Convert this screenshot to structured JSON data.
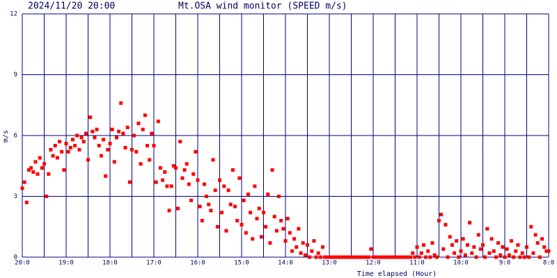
{
  "chart_data": {
    "type": "scatter",
    "title": "Mt.OSA wind monitor (SPEED m/s)",
    "subtitle": "2024/11/20 20:00",
    "ylabel": "m/s",
    "xlabel": "Time elapsed (Hour)",
    "color": "#ff0000",
    "grid_color": "#000080",
    "grid": true,
    "xlim": [
      0,
      12
    ],
    "ylim": [
      0,
      12
    ],
    "yticks": [
      0,
      3,
      6,
      9,
      12
    ],
    "xticks": [
      {
        "value": 0,
        "label": "20:0"
      },
      {
        "value": 1,
        "label": "19:0"
      },
      {
        "value": 2,
        "label": "18:0"
      },
      {
        "value": 3,
        "label": "17:0"
      },
      {
        "value": 4,
        "label": "16:0"
      },
      {
        "value": 5,
        "label": "15:0"
      },
      {
        "value": 6,
        "label": "14:0"
      },
      {
        "value": 7,
        "label": "13:0"
      },
      {
        "value": 8,
        "label": "12:0"
      },
      {
        "value": 9,
        "label": "11:0"
      },
      {
        "value": 10,
        "label": "10:0"
      },
      {
        "value": 11,
        "label": "9:0"
      },
      {
        "value": 12,
        "label": "8:0"
      }
    ],
    "x_grid": [
      0.5,
      1.5,
      2.5,
      3.5,
      4.5,
      5.5,
      6.5,
      7.5,
      8.5,
      9.5,
      10.5,
      11.5
    ],
    "x": [
      0,
      0.05,
      0.1,
      0.15,
      0.2,
      0.25,
      0.3,
      0.35,
      0.4,
      0.45,
      0.5,
      0.55,
      0.6,
      0.65,
      0.7,
      0.75,
      0.8,
      0.85,
      0.9,
      0.95,
      1,
      1.05,
      1.1,
      1.15,
      1.2,
      1.25,
      1.3,
      1.35,
      1.4,
      1.45,
      1.5,
      1.55,
      1.6,
      1.65,
      1.7,
      1.75,
      1.8,
      1.85,
      1.9,
      1.95,
      2,
      2.05,
      2.1,
      2.15,
      2.2,
      2.25,
      2.3,
      2.35,
      2.4,
      2.45,
      2.5,
      2.55,
      2.6,
      2.65,
      2.7,
      2.75,
      2.8,
      2.85,
      2.9,
      2.95,
      3,
      3.05,
      3.1,
      3.15,
      3.2,
      3.25,
      3.3,
      3.35,
      3.4,
      3.45,
      3.5,
      3.55,
      3.6,
      3.65,
      3.7,
      3.75,
      3.8,
      3.85,
      3.9,
      3.95,
      4,
      4.05,
      4.1,
      4.15,
      4.2,
      4.25,
      4.3,
      4.35,
      4.4,
      4.45,
      4.5,
      4.55,
      4.6,
      4.65,
      4.7,
      4.75,
      4.8,
      4.85,
      4.9,
      4.95,
      5,
      5.05,
      5.1,
      5.15,
      5.2,
      5.25,
      5.3,
      5.35,
      5.4,
      5.45,
      5.5,
      5.55,
      5.6,
      5.65,
      5.7,
      5.75,
      5.8,
      5.85,
      5.9,
      5.95,
      6,
      6.05,
      6.1,
      6.15,
      6.2,
      6.25,
      6.3,
      6.35,
      6.4,
      6.45,
      6.5,
      6.55,
      6.6,
      6.65,
      6.7,
      6.75,
      6.8,
      6.85,
      6.9,
      6.95,
      7,
      7.05,
      7.1,
      7.15,
      7.2,
      7.25,
      7.3,
      7.35,
      7.4,
      7.45,
      7.5,
      7.55,
      7.6,
      7.65,
      7.7,
      7.75,
      7.8,
      7.85,
      7.9,
      7.95,
      8,
      8.05,
      8.1,
      8.15,
      8.2,
      8.25,
      8.3,
      8.35,
      8.4,
      8.45,
      8.5,
      8.55,
      8.6,
      8.65,
      8.7,
      8.75,
      8.8,
      8.85,
      8.9,
      8.95,
      9,
      9.05,
      9.1,
      9.15,
      9.2,
      9.25,
      9.3,
      9.35,
      9.4,
      9.45,
      9.5,
      9.55,
      9.6,
      9.65,
      9.7,
      9.75,
      9.8,
      9.85,
      9.9,
      9.95,
      10,
      10.05,
      10.1,
      10.15,
      10.2,
      10.25,
      10.3,
      10.35,
      10.4,
      10.45,
      10.5,
      10.55,
      10.6,
      10.65,
      10.7,
      10.75,
      10.8,
      10.85,
      10.9,
      10.95,
      11,
      11.05,
      11.1,
      11.15,
      11.2,
      11.25,
      11.3,
      11.35,
      11.4,
      11.45,
      11.5,
      11.55,
      11.6,
      11.65,
      11.7,
      11.75,
      11.8,
      11.85,
      11.9,
      11.95,
      12
    ],
    "values": [
      3.4,
      3.7,
      2.7,
      4.3,
      4.4,
      4.2,
      4.7,
      4.1,
      4.9,
      4.4,
      4.6,
      3.0,
      4.1,
      5.3,
      5.0,
      5.5,
      4.9,
      5.7,
      5.2,
      4.3,
      5.6,
      5.2,
      5.4,
      5.8,
      5.5,
      6.0,
      5.3,
      5.9,
      5.7,
      6.1,
      4.8,
      6.9,
      6.2,
      5.9,
      6.3,
      5.5,
      5.0,
      5.8,
      4.0,
      5.3,
      5.6,
      6.3,
      4.7,
      5.9,
      6.2,
      7.6,
      6.1,
      5.4,
      6.4,
      3.7,
      5.3,
      6.0,
      5.2,
      6.6,
      4.6,
      6.3,
      7.0,
      5.5,
      4.8,
      6.1,
      5.5,
      3.7,
      6.7,
      4.4,
      3.8,
      4.2,
      3.5,
      2.3,
      3.5,
      4.5,
      4.4,
      2.4,
      5.7,
      3.9,
      4.3,
      4.6,
      3.6,
      2.8,
      4.1,
      5.2,
      3.8,
      2.5,
      1.8,
      3.6,
      3.0,
      2.6,
      2.3,
      4.8,
      3.3,
      1.5,
      3.8,
      2.2,
      3.5,
      1.3,
      3.3,
      2.6,
      4.3,
      2.5,
      1.8,
      3.9,
      1.6,
      2.8,
      1.2,
      3.1,
      2.2,
      0.9,
      3.5,
      1.9,
      2.4,
      1.0,
      2.2,
      1.5,
      3.1,
      0.7,
      4.3,
      2.0,
      1.3,
      3.0,
      1.8,
      1.4,
      0.8,
      1.9,
      1.2,
      0.3,
      0.9,
      0.5,
      1.4,
      0.2,
      0.7,
      0.1,
      0.6,
      0,
      0.3,
      0.8,
      0,
      0.2,
      0,
      0.5,
      0,
      0,
      0,
      0,
      0,
      0,
      0,
      0,
      0,
      0,
      0,
      0,
      0,
      0,
      0,
      0,
      0,
      0,
      0,
      0,
      0,
      0.4,
      0,
      0,
      0,
      0,
      0,
      0,
      0,
      0,
      0,
      0,
      0,
      0,
      0,
      0,
      0,
      0,
      0,
      0,
      0.2,
      0,
      0.5,
      0,
      0.2,
      0.6,
      0,
      0.3,
      0,
      0.7,
      0.1,
      0,
      1.8,
      2.1,
      0.4,
      1.6,
      0,
      1.0,
      0.6,
      0.2,
      0.8,
      0,
      0.3,
      0.9,
      0.1,
      0.6,
      1.7,
      0.2,
      0.5,
      0,
      1.1,
      0.4,
      0.6,
      0,
      1.4,
      0.2,
      0.9,
      0.3,
      0,
      0.7,
      0.1,
      0.5,
      0,
      0.4,
      0.1,
      0.8,
      0,
      0.3,
      0.6,
      0,
      0.2,
      0,
      0.5,
      0,
      1.5,
      0.2,
      1.1,
      0.7,
      0,
      0.9,
      0.5,
      0.3,
      0.3
    ]
  }
}
